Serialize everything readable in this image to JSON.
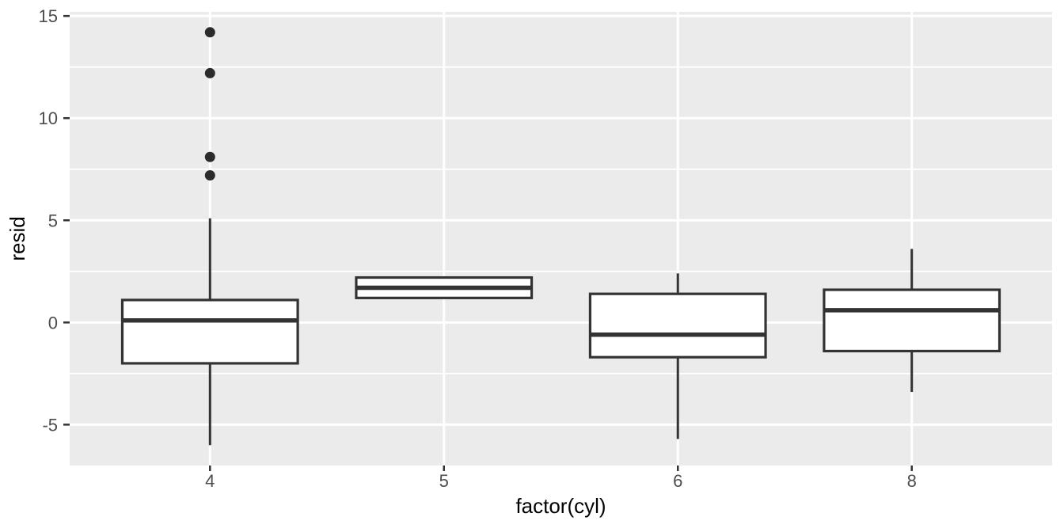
{
  "chart_data": {
    "type": "boxplot",
    "title": "",
    "xlabel": "factor(cyl)",
    "ylabel": "resid",
    "categories": [
      "4",
      "5",
      "6",
      "8"
    ],
    "y_axis": {
      "ticks": [
        -5,
        0,
        5,
        10,
        15
      ],
      "tick_labels": [
        "-5",
        "0",
        "5",
        "10",
        "15"
      ],
      "minor_ticks": [
        -2.5,
        2.5,
        7.5,
        12.5
      ],
      "limits": [
        -7.0,
        15.2
      ]
    },
    "grid": "on",
    "legend": "none",
    "boxes": [
      {
        "category": "4",
        "whisker_low": -6.0,
        "q1": -2.0,
        "median": 0.1,
        "q3": 1.1,
        "whisker_high": 5.1,
        "outliers": [
          7.2,
          8.1,
          12.2,
          14.2
        ]
      },
      {
        "category": "5",
        "whisker_low": 1.2,
        "q1": 1.2,
        "median": 1.7,
        "q3": 2.2,
        "whisker_high": 2.2,
        "outliers": []
      },
      {
        "category": "6",
        "whisker_low": -5.7,
        "q1": -1.7,
        "median": -0.6,
        "q3": 1.4,
        "whisker_high": 2.4,
        "outliers": []
      },
      {
        "category": "8",
        "whisker_low": -3.4,
        "q1": -1.4,
        "median": 0.6,
        "q3": 1.6,
        "whisker_high": 3.6,
        "outliers": []
      }
    ],
    "colors": {
      "panel_background": "#EBEBEB",
      "gridline": "#FFFFFF",
      "box_stroke": "#333333",
      "box_fill": "#FFFFFF",
      "outlier_fill": "#2B2B2B",
      "tick_mark": "#333333",
      "tick_label": "#4D4D4D",
      "axis_title": "#000000"
    }
  }
}
